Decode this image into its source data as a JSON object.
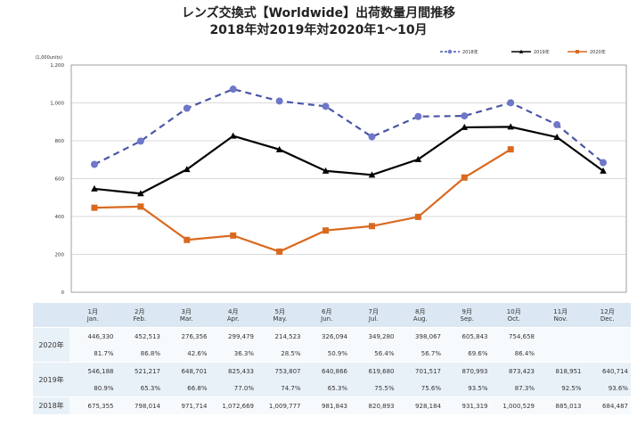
{
  "chart_data": {
    "type": "line",
    "title": "レンズ交換式【Worldwide】出荷数量月間推移",
    "subtitle": "2018年対2019年対2020年1～10月",
    "ylabel": "(1,000units)",
    "ylim": [
      0,
      1200
    ],
    "yticks": [
      "0",
      "200",
      "400",
      "600",
      "800",
      "1,000",
      "1,200"
    ],
    "grid": true,
    "legend_position": "top-right",
    "categories": [
      "1",
      "2",
      "3",
      "4",
      "5",
      "6",
      "7",
      "8",
      "9",
      "10",
      "11",
      "12"
    ],
    "series": [
      {
        "name": "2018年",
        "color": "#4a56a6",
        "marker_color": "#6f77c9",
        "dashed": true,
        "marker": "circle",
        "values": [
          675.355,
          798.014,
          971.714,
          1072.669,
          1009.777,
          981.843,
          820.893,
          928.184,
          931.319,
          1000.529,
          885.013,
          684.487
        ]
      },
      {
        "name": "2019年",
        "color": "#000000",
        "marker_color": "#000000",
        "dashed": false,
        "marker": "triangle",
        "values": [
          546.188,
          521.217,
          648.701,
          825.433,
          753.807,
          640.866,
          619.68,
          701.517,
          870.993,
          873.423,
          818.951,
          640.714
        ]
      },
      {
        "name": "2020年",
        "color": "#d9691f",
        "marker_color": "#d9691f",
        "dashed": false,
        "marker": "square",
        "values": [
          446.33,
          452.513,
          276.356,
          299.479,
          214.523,
          326.094,
          349.28,
          398.067,
          605.843,
          754.658,
          null,
          null
        ]
      }
    ]
  },
  "table": {
    "months": [
      {
        "num": "1月",
        "en": "Jan."
      },
      {
        "num": "2月",
        "en": "Feb."
      },
      {
        "num": "3月",
        "en": "Mar."
      },
      {
        "num": "4月",
        "en": "Apr."
      },
      {
        "num": "5月",
        "en": "May."
      },
      {
        "num": "6月",
        "en": "Jun."
      },
      {
        "num": "7月",
        "en": "Jul."
      },
      {
        "num": "8月",
        "en": "Aug."
      },
      {
        "num": "9月",
        "en": "Sep."
      },
      {
        "num": "10月",
        "en": "Oct."
      },
      {
        "num": "11月",
        "en": "Nov."
      },
      {
        "num": "12月",
        "en": "Dec."
      }
    ],
    "rows": [
      {
        "label": "2020年",
        "values": [
          "446,330",
          "452,513",
          "276,356",
          "299,479",
          "214,523",
          "326,094",
          "349,280",
          "398,067",
          "605,843",
          "754,658",
          "",
          ""
        ],
        "ratios": [
          "81.7%",
          "86.8%",
          "42.6%",
          "36.3%",
          "28.5%",
          "50.9%",
          "56.4%",
          "56.7%",
          "69.6%",
          "86.4%",
          "",
          ""
        ]
      },
      {
        "label": "2019年",
        "values": [
          "546,188",
          "521,217",
          "648,701",
          "825,433",
          "753,807",
          "640,866",
          "619,680",
          "701,517",
          "870,993",
          "873,423",
          "818,951",
          "640,714"
        ],
        "ratios": [
          "80.9%",
          "65.3%",
          "66.8%",
          "77.0%",
          "74.7%",
          "65.3%",
          "75.5%",
          "75.6%",
          "93.5%",
          "87.3%",
          "92.5%",
          "93.6%"
        ]
      },
      {
        "label": "2018年",
        "values": [
          "675,355",
          "798,014",
          "971,714",
          "1,072,669",
          "1,009,777",
          "981,843",
          "820,893",
          "928,184",
          "931,319",
          "1,000,529",
          "885,013",
          "684,487"
        ],
        "ratios": []
      }
    ]
  }
}
